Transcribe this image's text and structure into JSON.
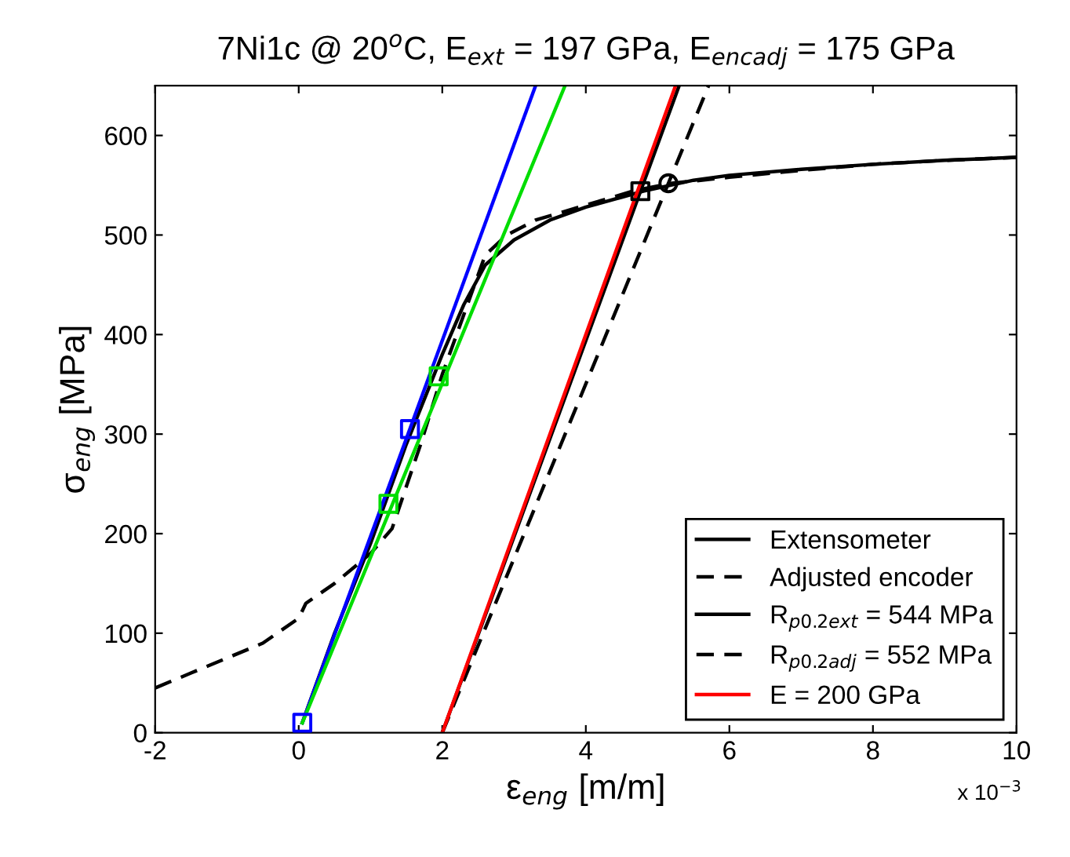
{
  "chart_data": {
    "type": "line",
    "title": "7Ni1c @ 20$^{o}$C, E$_{ext}$ = 197 GPa, E$_{encadj}$ = 175 GPa",
    "xlabel": "ε$_{eng}$ [m/m]",
    "ylabel": "σ$_{eng}$ [MPa]",
    "annotations": [
      "x 10$^{−3}$"
    ],
    "xlim": [
      -2,
      10
    ],
    "xticks": [
      -2,
      0,
      2,
      4,
      6,
      8,
      10
    ],
    "ylim": [
      0,
      650
    ],
    "yticks": [
      0,
      100,
      200,
      300,
      400,
      500,
      600
    ],
    "grid": false,
    "legend": "bottom right",
    "marker": "none",
    "series": [
      {
        "name": "Extensometer",
        "color": "#000000",
        "line_style": "solid",
        "x": [
          0.05,
          0.5,
          1.0,
          1.5,
          2.0,
          2.3,
          2.6,
          3.0,
          3.5,
          4.0,
          4.5,
          4.8,
          5.5,
          6,
          7,
          8,
          9,
          10
        ],
        "values": [
          10,
          100,
          190,
          290,
          380,
          430,
          470,
          495,
          515,
          528,
          538,
          544,
          555,
          560,
          566,
          571,
          575,
          578
        ]
      },
      {
        "name": "Adjusted encoder",
        "color": "#000000",
        "line_style": "dashed",
        "x": [
          -2,
          -1.5,
          -1,
          -0.5,
          0,
          0.1,
          0.5,
          1.0,
          1.3,
          1.7,
          2.0,
          2.3,
          2.6,
          2.9,
          3.3,
          4,
          4.7,
          5.2,
          6,
          7,
          8,
          9,
          10
        ],
        "values": [
          45,
          60,
          75,
          90,
          115,
          130,
          150,
          180,
          205,
          290,
          360,
          420,
          480,
          500,
          515,
          530,
          545,
          552,
          558,
          565,
          571,
          575,
          578
        ]
      },
      {
        "name": "R$_{p0.2ext}$ = 544 MPa",
        "color": "#000000",
        "line_style": "solid",
        "x": [
          2.0,
          5.3
        ],
        "values": [
          0,
          650
        ]
      },
      {
        "name": "R$_{p0.2adj}$ = 552 MPa",
        "color": "#000000",
        "line_style": "dashed",
        "x": [
          2.0,
          5.71
        ],
        "values": [
          0,
          650
        ]
      },
      {
        "name": "E = 200 GPa",
        "color": "#ff0000",
        "line_style": "solid",
        "x": [
          2.0,
          5.25
        ],
        "values": [
          0,
          650
        ]
      },
      {
        "color": "#0000ff",
        "line_style": "solid",
        "x": [
          0.05,
          3.3
        ],
        "values": [
          10,
          650
        ]
      },
      {
        "color": "#00dd00",
        "line_style": "solid",
        "x": [
          0.05,
          3.71
        ],
        "values": [
          10,
          650
        ]
      },
      {
        "type": "scatter",
        "color": "#0000ff",
        "marker": "square",
        "x": [
          0.05,
          1.55
        ],
        "values": [
          10,
          305
        ]
      },
      {
        "type": "scatter",
        "color": "#00dd00",
        "marker": "square",
        "x": [
          1.25,
          1.95
        ],
        "values": [
          230,
          358
        ]
      },
      {
        "type": "scatter",
        "color": "#000000",
        "marker": "square",
        "x": [
          4.76
        ],
        "values": [
          544
        ]
      },
      {
        "type": "scatter",
        "color": "#000000",
        "marker": "circle",
        "x": [
          5.15
        ],
        "values": [
          552
        ]
      }
    ]
  }
}
